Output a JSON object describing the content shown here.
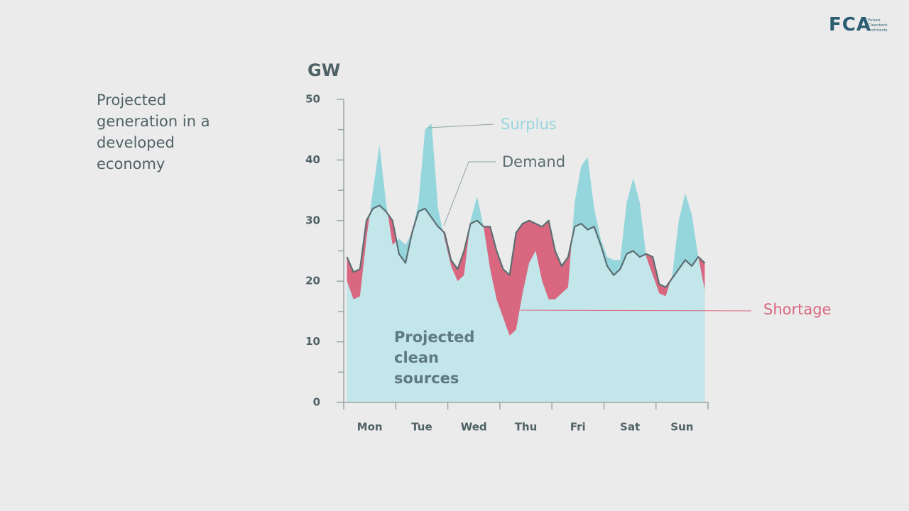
{
  "chart_data": {
    "type": "area",
    "title": "Projected generation in a developed economy",
    "y_label": "GW",
    "categories": [
      null,
      null,
      null,
      null,
      "Mon",
      null,
      null,
      null,
      null,
      null,
      null,
      null,
      "Tue",
      null,
      null,
      null,
      null,
      null,
      null,
      null,
      "Wed",
      null,
      null,
      null,
      null,
      null,
      null,
      null,
      "Thu",
      null,
      null,
      null,
      null,
      null,
      null,
      null,
      "Fri",
      null,
      null,
      null,
      null,
      null,
      null,
      null,
      "Sat",
      null,
      null,
      null,
      null,
      null,
      null,
      null,
      "Sun",
      null,
      null,
      null
    ],
    "series": [
      {
        "name": "Projected clean sources",
        "color": "#c3e6ea",
        "values": [
          20,
          17,
          17.5,
          27,
          35,
          42.5,
          33,
          26,
          27,
          26,
          28,
          33,
          45,
          46,
          32,
          27,
          22.5,
          20,
          21,
          30,
          34,
          29,
          22,
          17,
          14,
          11,
          12,
          18,
          23,
          25,
          20,
          17,
          17,
          18,
          19,
          33,
          39,
          40.5,
          32,
          27,
          24,
          23.5,
          23.5,
          33,
          37,
          33,
          24,
          21,
          18,
          17.5,
          21,
          30,
          34.5,
          31,
          24,
          18.5
        ]
      },
      {
        "name": "Demand",
        "color": "#5c6e72",
        "values": [
          24,
          21.5,
          22,
          30,
          32,
          32.5,
          31.5,
          30,
          24.5,
          23,
          28,
          31.5,
          32,
          30.5,
          29,
          28,
          23.5,
          22,
          25,
          29.5,
          30,
          29,
          29,
          25,
          22,
          21,
          28,
          29.5,
          30,
          29.5,
          29,
          30,
          25,
          22.5,
          24,
          29,
          29.5,
          28.5,
          29,
          26,
          22.5,
          21,
          22,
          24.5,
          25,
          24,
          24.5,
          24,
          19.5,
          19,
          20.5,
          22,
          23.5,
          22.5,
          24,
          23
        ]
      }
    ],
    "surplus": {
      "text": "Surplus",
      "color": "#95d6dc"
    },
    "shortage": {
      "text": "Shortage",
      "color": "#d9677f"
    },
    "ylim": [
      0,
      50
    ],
    "yticks": [
      0,
      10,
      20,
      30,
      40,
      50
    ],
    "yticks_minor": [
      5,
      15,
      25,
      35,
      45
    ]
  },
  "logo": {
    "mark": "FCA",
    "name": "Future Cleantech Architects"
  }
}
